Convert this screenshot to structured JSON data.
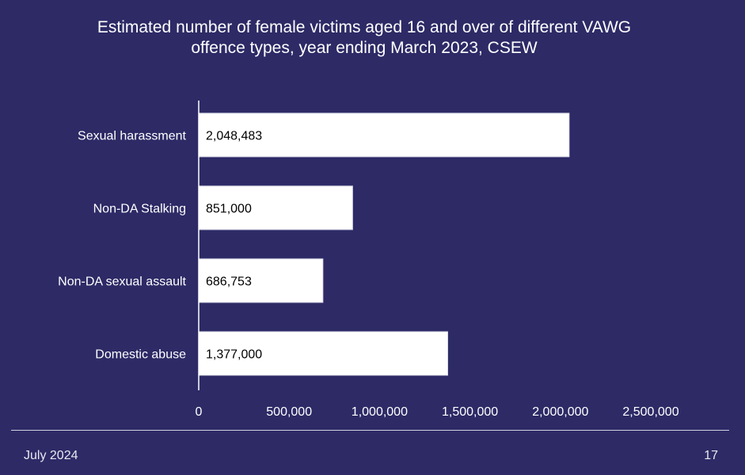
{
  "chart_data": {
    "type": "bar",
    "orientation": "horizontal",
    "title": "Estimated number of female victims aged 16 and over of different VAWG offence types, year ending March 2023, CSEW",
    "categories": [
      "Sexual harassment",
      "Non-DA Stalking",
      "Non-DA sexual assault",
      "Domestic abuse"
    ],
    "values": [
      2048483,
      851000,
      686753,
      1377000
    ],
    "value_labels": [
      "2,048,483",
      "851,000",
      "686,753",
      "1,377,000"
    ],
    "xlim": [
      0,
      2500000
    ],
    "x_ticks": [
      0,
      500000,
      1000000,
      1500000,
      2000000,
      2500000
    ],
    "x_tick_labels": [
      "0",
      "500,000",
      "1,000,000",
      "1,500,000",
      "2,000,000",
      "2,500,000"
    ],
    "bar_color": "#ffffff",
    "text_color": "#ffffff",
    "label_color": "#000000",
    "grid": false,
    "legend": "none"
  },
  "footer": {
    "date": "July 2024",
    "page": "17"
  },
  "colors": {
    "background": "#2d2a66"
  }
}
